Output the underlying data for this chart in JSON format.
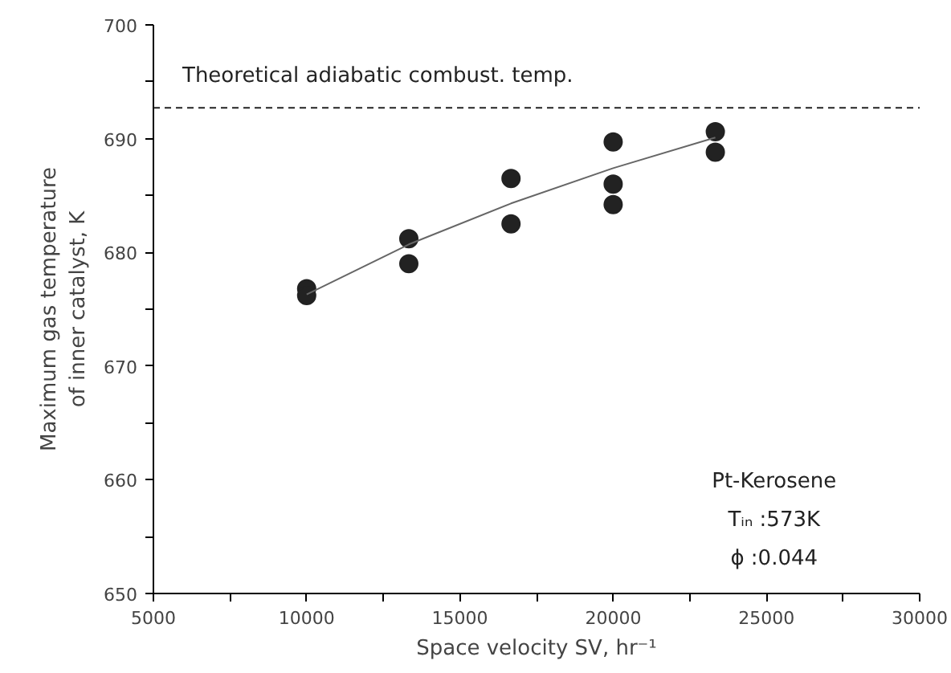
{
  "chart_data": {
    "type": "scatter",
    "xlabel": "Space velocity SV, hr⁻¹",
    "ylabel": "Maximum gas temperature\nof inner catalyst, K",
    "series": [
      {
        "color": "#222222",
        "marker": "circle",
        "x": [
          10000,
          10000,
          13333,
          13333,
          16667,
          16667,
          20000,
          20000,
          20000,
          23333,
          23333
        ],
        "values": [
          676.8,
          676.2,
          681.2,
          679.0,
          686.5,
          682.5,
          689.7,
          686.0,
          684.2,
          690.6,
          688.8
        ]
      },
      {
        "type": "line",
        "color": "#666666",
        "line_style": "solid",
        "x": [
          10000,
          13333,
          16667,
          20000,
          23333
        ],
        "values": [
          676.3,
          680.7,
          684.3,
          687.4,
          690.1
        ]
      }
    ],
    "xlim": [
      5000,
      30000
    ],
    "ylim": [
      650,
      700
    ],
    "xticks": [
      5000,
      {
        "value": 7500,
        "label": null
      },
      10000,
      {
        "value": 12500,
        "label": null
      },
      15000,
      {
        "value": 17500,
        "label": null
      },
      20000,
      {
        "value": 22500,
        "label": null
      },
      25000,
      {
        "value": 27500,
        "label": null
      },
      30000
    ],
    "yticks": [
      650,
      {
        "value": 655,
        "label": null
      },
      660,
      {
        "value": 665,
        "label": null
      },
      670,
      {
        "value": 675,
        "label": null
      },
      680,
      {
        "value": 685,
        "label": null
      },
      690,
      {
        "value": 695,
        "label": null
      },
      700
    ],
    "ref_lines": [
      {
        "axis": "y",
        "value": 692.7,
        "label": "Theoretical adiabatic combust. temp.",
        "color": "#222222",
        "line_style": "dashed"
      }
    ],
    "annotations": [
      "Pt-Kerosene",
      "Tᵢₙ :573K",
      "ϕ :0.044"
    ],
    "grid": false
  }
}
